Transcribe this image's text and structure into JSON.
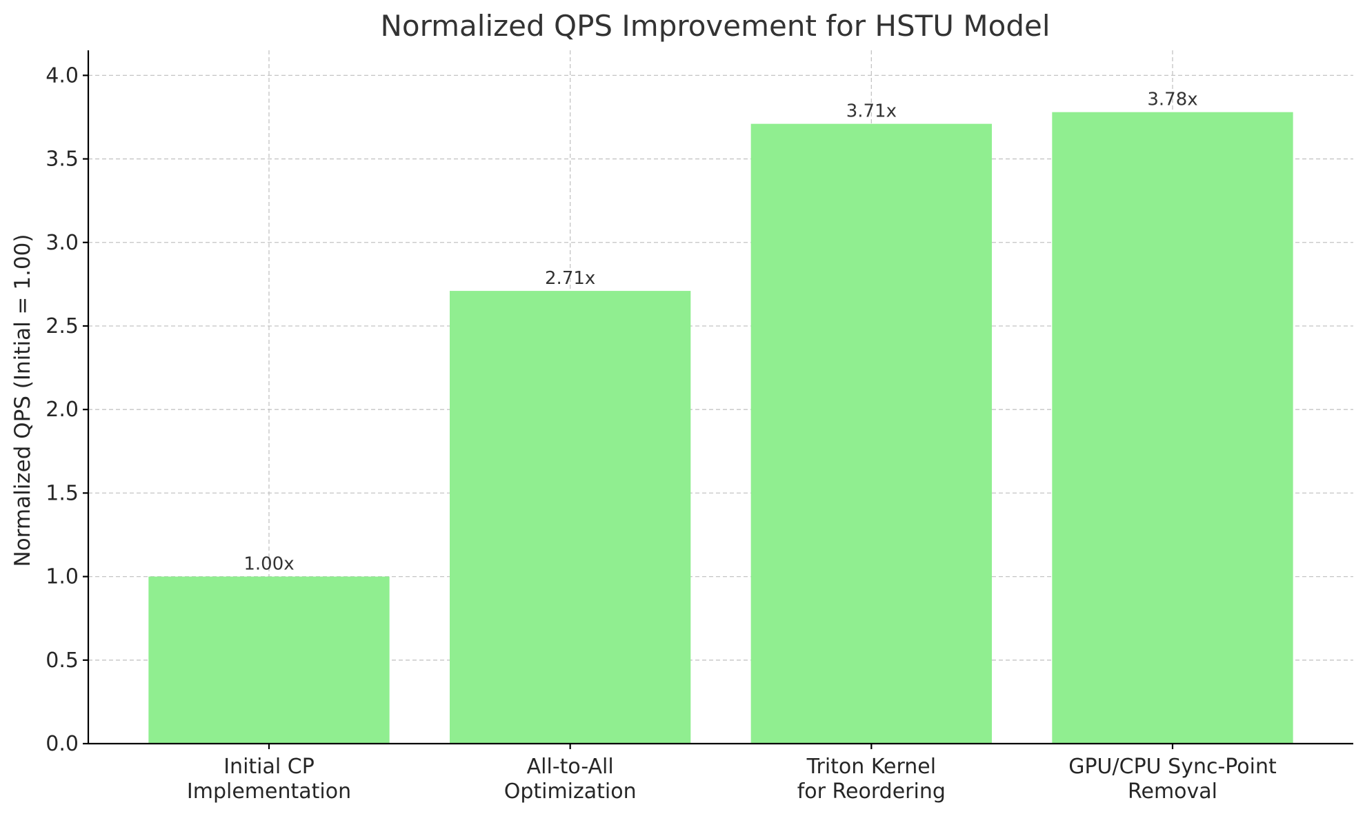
{
  "chart_data": {
    "type": "bar",
    "title": "Normalized QPS Improvement for HSTU Model",
    "xlabel": "",
    "ylabel": "Normalized QPS (Initial = 1.00)",
    "categories": [
      [
        "Initial CP",
        "Implementation"
      ],
      [
        "All-to-All",
        "Optimization"
      ],
      [
        "Triton Kernel",
        "for Reordering"
      ],
      [
        "GPU/CPU Sync-Point",
        "Removal"
      ]
    ],
    "values": [
      1.0,
      2.71,
      3.71,
      3.78
    ],
    "data_labels": [
      "1.00x",
      "2.71x",
      "3.71x",
      "3.78x"
    ],
    "ylim": [
      0,
      4.15
    ],
    "yticks": [
      0.0,
      0.5,
      1.0,
      1.5,
      2.0,
      2.5,
      3.0,
      3.5,
      4.0
    ],
    "ytick_labels": [
      "0.0",
      "0.5",
      "1.0",
      "1.5",
      "2.0",
      "2.5",
      "3.0",
      "3.5",
      "4.0"
    ],
    "grid": true,
    "colors": {
      "bar": "#90ee90",
      "grid": "#c4c4c4",
      "axis": "#000000",
      "text": "#262626"
    }
  }
}
